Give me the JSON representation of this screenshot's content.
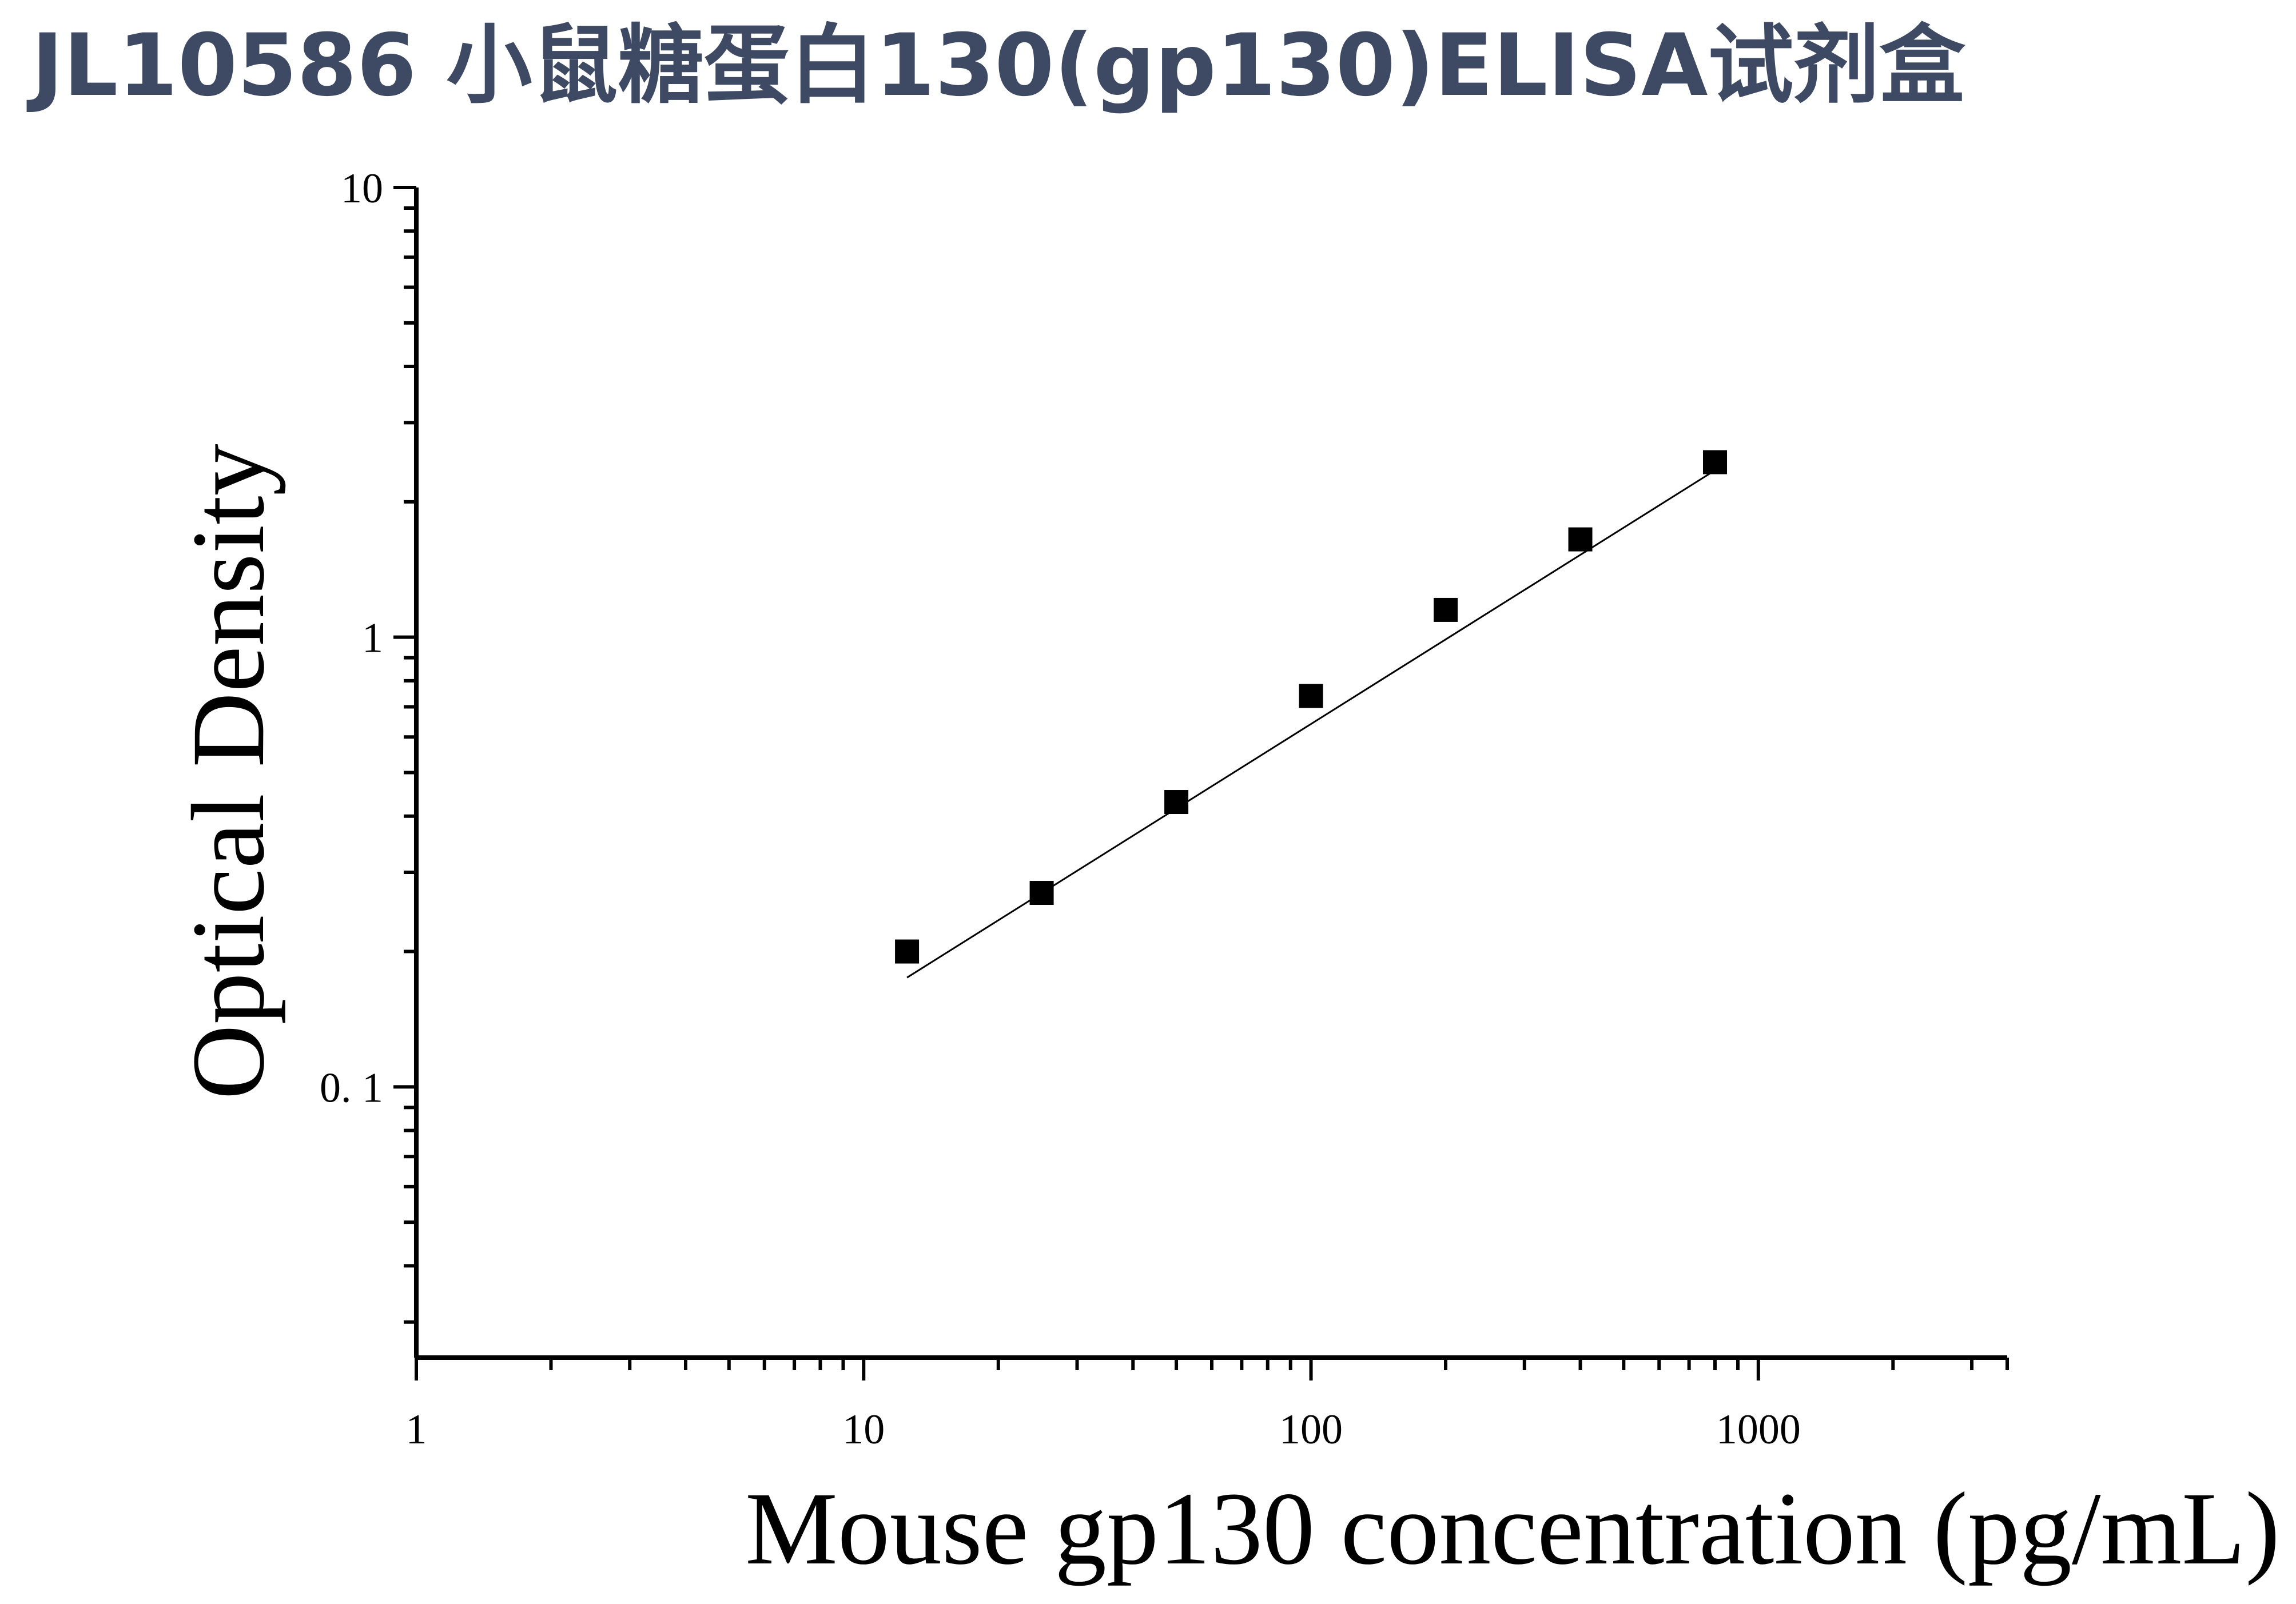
{
  "title": "JL10586 小鼠糖蛋白130(gp130)ELISA试剂盒",
  "chart_data": {
    "type": "scatter",
    "title": "JL10586 小鼠糖蛋白130(gp130)ELISA试剂盒",
    "xlabel": "Mouse gp130 concentration (pg/mL)",
    "ylabel": "Optical Density",
    "x_scale": "log",
    "y_scale": "log",
    "xlim": [
      1,
      3600
    ],
    "ylim": [
      0.025,
      10
    ],
    "x_ticks": [
      "1",
      "10",
      "100",
      "1000"
    ],
    "y_ticks": [
      "0. 1",
      "1",
      "10"
    ],
    "grid": false,
    "series": [
      {
        "marker": "square",
        "color": "#000000",
        "x": [
          12.5,
          25,
          50,
          100,
          200,
          400,
          800
        ],
        "y": [
          0.2,
          0.27,
          0.43,
          0.74,
          1.15,
          1.65,
          2.45
        ]
      }
    ],
    "fit_line": {
      "x": [
        12.5,
        800
      ],
      "y": [
        0.175,
        2.35
      ]
    }
  }
}
